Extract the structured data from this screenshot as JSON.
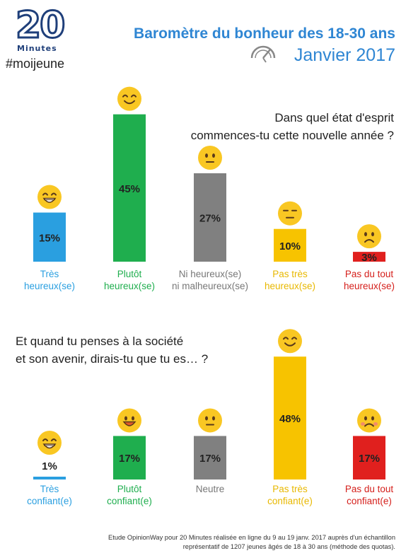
{
  "header": {
    "logo_number": "20",
    "logo_word": "Minutes",
    "tag": "#moijeune",
    "title": "Baromètre du bonheur des 18-30 ans",
    "date": "Janvier 2017"
  },
  "chart_data": [
    {
      "type": "bar",
      "title": "Dans quel état d'esprit commences-tu cette nouvelle année ?",
      "title_lines": [
        "Dans quel état d'esprit",
        "commences-tu cette nouvelle année ?"
      ],
      "unit": "%",
      "ylim": [
        0,
        50
      ],
      "grid": false,
      "categories": [
        {
          "lines": [
            "Très",
            "heureux(se)"
          ],
          "value": 15,
          "color": "#2a9fe0",
          "label_color": "#2a9fe0",
          "emoji": "grin-icon"
        },
        {
          "lines": [
            "Plutôt",
            "heureux(se)"
          ],
          "value": 45,
          "color": "#1fae4e",
          "label_color": "#1fae4e",
          "emoji": "smile-icon"
        },
        {
          "lines": [
            "Ni heureux(se)",
            "ni malheureux(se)"
          ],
          "value": 27,
          "color": "#808080",
          "label_color": "#777777",
          "emoji": "neutral-face-icon"
        },
        {
          "lines": [
            "Pas très",
            "heureux(se)"
          ],
          "value": 10,
          "color": "#f7c300",
          "label_color": "#e8b800",
          "emoji": "unamused-face-icon"
        },
        {
          "lines": [
            "Pas du tout",
            "heureux(se)"
          ],
          "value": 3,
          "color": "#e0201e",
          "label_color": "#d5201c",
          "emoji": "frown-face-icon"
        }
      ]
    },
    {
      "type": "bar",
      "title": "Et quand tu penses à la société et son avenir, dirais-tu que tu es... ?",
      "title_lines": [
        "Et quand tu penses à la société",
        "et son avenir, dirais-tu que tu es… ?"
      ],
      "unit": "%",
      "ylim": [
        0,
        50
      ],
      "grid": false,
      "categories": [
        {
          "lines": [
            "Très",
            "confiant(e)"
          ],
          "value": 1,
          "color": "#2a9fe0",
          "label_color": "#2a9fe0",
          "emoji": "grin-icon"
        },
        {
          "lines": [
            "Plutôt",
            "confiant(e)"
          ],
          "value": 17,
          "color": "#1fae4e",
          "label_color": "#1fae4e",
          "emoji": "happy-face-icon"
        },
        {
          "lines": [
            "Neutre"
          ],
          "value": 17,
          "color": "#808080",
          "label_color": "#777777",
          "emoji": "neutral-face-icon"
        },
        {
          "lines": [
            "Pas très",
            "confiant(e)"
          ],
          "value": 48,
          "color": "#f7c300",
          "label_color": "#e8b800",
          "emoji": "relieved-face-icon"
        },
        {
          "lines": [
            "Pas du tout",
            "confiant(e)"
          ],
          "value": 17,
          "color": "#e0201e",
          "label_color": "#d5201c",
          "emoji": "sad-face-icon"
        }
      ]
    }
  ],
  "footnote": {
    "line1": "Etude OpinionWay pour 20 Minutes réalisée en ligne du 9 au 19 janv. 2017 auprès d'un échantillon",
    "line2": "représentatif de 1207 jeunes âgés de 18 à 30 ans (méthode des quotas)."
  }
}
